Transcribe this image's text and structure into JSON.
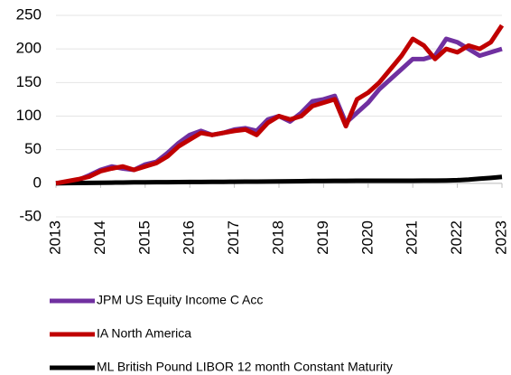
{
  "chart_data": {
    "type": "line",
    "x": [
      2013,
      2013.25,
      2013.5,
      2013.75,
      2014,
      2014.25,
      2014.5,
      2014.75,
      2015,
      2015.25,
      2015.5,
      2015.75,
      2016,
      2016.25,
      2016.5,
      2016.75,
      2017,
      2017.25,
      2017.5,
      2017.75,
      2018,
      2018.25,
      2018.5,
      2018.75,
      2019,
      2019.25,
      2019.5,
      2019.75,
      2020,
      2020.25,
      2020.5,
      2020.75,
      2021,
      2021.25,
      2021.5,
      2021.75,
      2022,
      2022.25,
      2022.5,
      2022.75,
      2023
    ],
    "series": [
      {
        "name": "JPM US Equity Income C Acc",
        "color": "#7030a0",
        "values": [
          0,
          2,
          5,
          12,
          20,
          25,
          22,
          20,
          28,
          32,
          45,
          60,
          72,
          78,
          72,
          75,
          80,
          82,
          78,
          95,
          100,
          92,
          105,
          122,
          125,
          130,
          90,
          105,
          120,
          140,
          155,
          170,
          185,
          185,
          190,
          215,
          210,
          200,
          190,
          195,
          200
        ]
      },
      {
        "name": "IA North America",
        "color": "#c00000",
        "values": [
          0,
          3,
          6,
          10,
          18,
          22,
          25,
          20,
          25,
          30,
          40,
          55,
          65,
          75,
          72,
          75,
          78,
          80,
          72,
          90,
          100,
          95,
          100,
          115,
          120,
          125,
          85,
          125,
          135,
          150,
          170,
          190,
          215,
          205,
          185,
          200,
          195,
          205,
          200,
          210,
          235
        ]
      },
      {
        "name": "ML British Pound LIBOR 12 month Constant Maturity",
        "color": "#000000",
        "values": [
          0,
          0.2,
          0.4,
          0.6,
          0.8,
          1,
          1.2,
          1.4,
          1.5,
          1.6,
          1.7,
          1.8,
          1.9,
          2,
          2.1,
          2.2,
          2.3,
          2.4,
          2.5,
          2.6,
          2.8,
          3,
          3.2,
          3.4,
          3.5,
          3.6,
          3.7,
          3.8,
          3.8,
          3.8,
          3.8,
          3.8,
          3.8,
          3.9,
          4,
          4.2,
          4.6,
          5.5,
          6.8,
          8,
          9.5
        ]
      }
    ],
    "xlim": [
      2013,
      2023
    ],
    "xticks": [
      2013,
      2014,
      2015,
      2016,
      2017,
      2018,
      2019,
      2020,
      2021,
      2022,
      2023
    ],
    "ylim": [
      -50,
      250
    ],
    "yticks": [
      -50,
      0,
      50,
      100,
      150,
      200,
      250
    ],
    "grid": true
  }
}
